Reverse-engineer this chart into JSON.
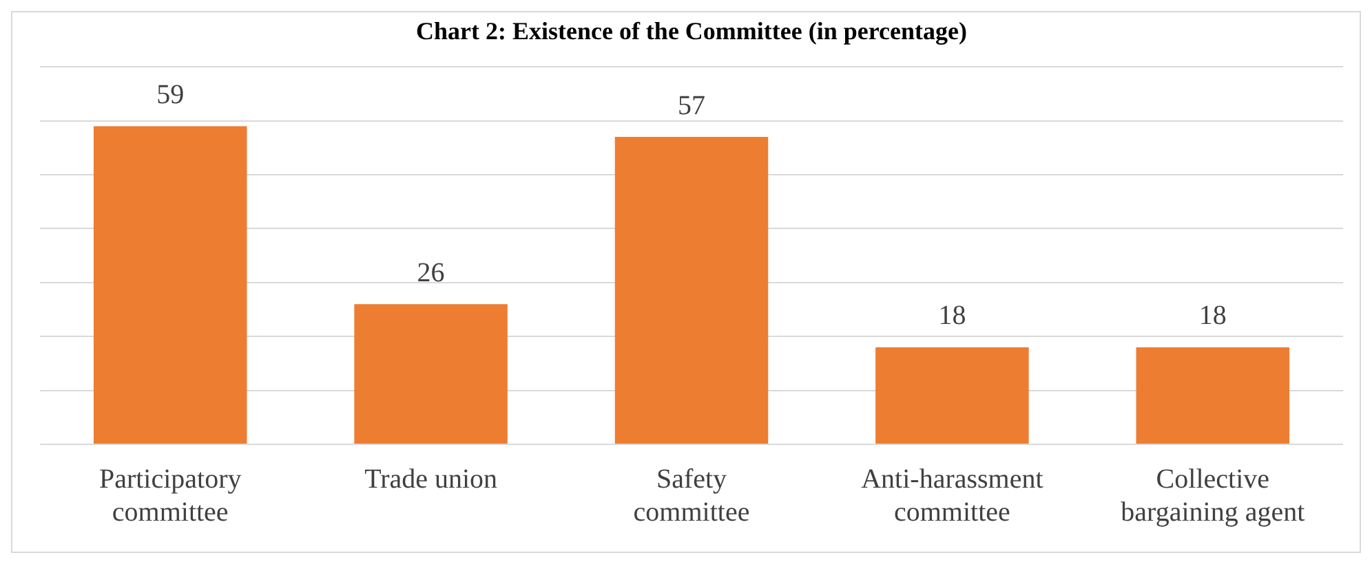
{
  "chart_data": {
    "type": "bar",
    "title": "Chart 2: Existence of the Committee (in percentage)",
    "categories": [
      [
        "Participatory",
        "committee"
      ],
      [
        "Trade union"
      ],
      [
        "Safety",
        "committee"
      ],
      [
        "Anti-harassment",
        "committee"
      ],
      [
        "Collective",
        "bargaining agent"
      ]
    ],
    "values": [
      59,
      26,
      57,
      18,
      18
    ],
    "color": "#ed7d31",
    "data_labels": true,
    "grid": "y",
    "tick_labels": "x",
    "legend": false,
    "ylim": [
      0,
      70
    ],
    "yticks": [
      {
        "value": 0,
        "label": null
      },
      {
        "value": 10,
        "label": null
      },
      {
        "value": 20,
        "label": null
      },
      {
        "value": 30,
        "label": null
      },
      {
        "value": 40,
        "label": null
      },
      {
        "value": 50,
        "label": null
      },
      {
        "value": 60,
        "label": null
      },
      {
        "value": 70,
        "label": null
      }
    ]
  }
}
